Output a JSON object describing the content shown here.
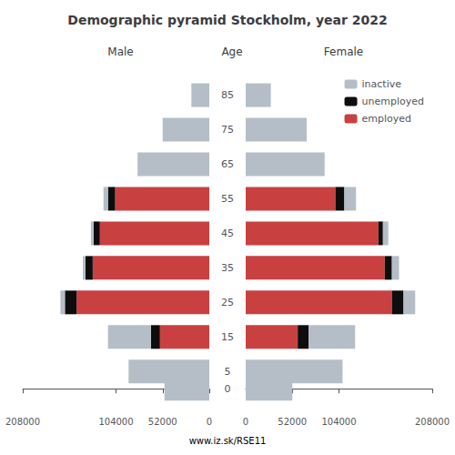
{
  "chart_data": [
    {
      "type": "bar",
      "title": "Demographic pyramid Stockholm, year 2022",
      "subtitle": "Male",
      "ylabel": "Age",
      "annotations": [
        "www.iz.sk/RSE11"
      ],
      "orientation": "horizontal",
      "stacked": true,
      "grid": false,
      "y": [
        85,
        75,
        65,
        55,
        45,
        35,
        25,
        15,
        5,
        0
      ],
      "series": [
        {
          "name": "employed",
          "color": "#c94040",
          "values": [
            0,
            0,
            0,
            105000,
            122000,
            130000,
            148000,
            55000,
            0,
            0
          ]
        },
        {
          "name": "unemployed",
          "color": "#0d0d0d",
          "values": [
            0,
            0,
            0,
            8000,
            7000,
            8000,
            13000,
            10000,
            0,
            0
          ]
        },
        {
          "name": "inactive",
          "color": "#b5bec7",
          "values": [
            20000,
            52000,
            80000,
            5000,
            3000,
            3000,
            5000,
            48000,
            90000,
            50000
          ]
        }
      ],
      "xlim": [
        0,
        208000
      ],
      "xticks": [
        208000,
        104000,
        52000,
        0
      ],
      "ylim": [
        -6,
        92
      ],
      "yticks": [
        85,
        75,
        65,
        55,
        45,
        35,
        25,
        15,
        5,
        0
      ]
    },
    {
      "type": "bar",
      "subtitle": "Female",
      "orientation": "horizontal",
      "stacked": true,
      "grid": false,
      "legend": "upper right",
      "y": [
        85,
        75,
        65,
        55,
        45,
        35,
        25,
        15,
        5,
        0
      ],
      "series": [
        {
          "name": "employed",
          "color": "#c94040",
          "values": [
            0,
            0,
            0,
            100000,
            148000,
            155000,
            163000,
            58000,
            0,
            0
          ]
        },
        {
          "name": "unemployed",
          "color": "#0d0d0d",
          "values": [
            0,
            0,
            0,
            10000,
            5000,
            8000,
            13000,
            12000,
            0,
            0
          ]
        },
        {
          "name": "inactive",
          "color": "#b5bec7",
          "values": [
            28000,
            68000,
            88000,
            13000,
            6000,
            8000,
            13000,
            52000,
            108000,
            52000
          ]
        }
      ],
      "xlim": [
        0,
        208000
      ],
      "xticks": [
        0,
        52000,
        104000,
        208000
      ],
      "ylim": [
        -6,
        92
      ],
      "yticks": [
        85,
        75,
        65,
        55,
        45,
        35,
        25,
        15,
        5,
        0
      ]
    }
  ]
}
